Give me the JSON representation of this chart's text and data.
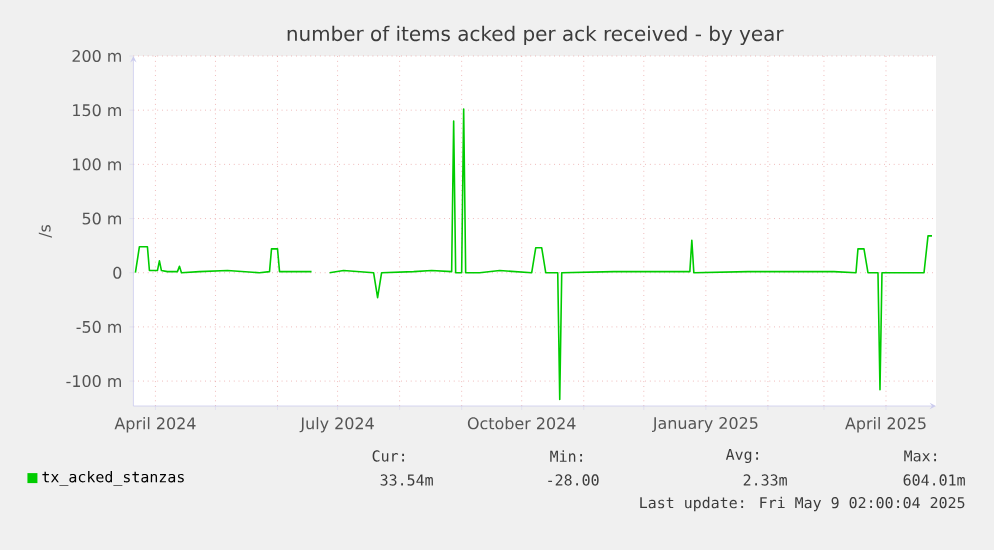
{
  "chart_data": {
    "type": "line",
    "title": "number of items acked per ack received - by year",
    "ylabel": "/s",
    "x": [
      "2024-03-22",
      "2024-03-24",
      "2024-03-28",
      "2024-03-29",
      "2024-04-02",
      "2024-04-03",
      "2024-04-04",
      "2024-04-07",
      "2024-04-12",
      "2024-04-13",
      "2024-04-14",
      "2024-04-23",
      "2024-05-07",
      "2024-05-23",
      "2024-05-28",
      "2024-05-29",
      "2024-06-01",
      "2024-06-02",
      "2024-06-18",
      "2024-06-19",
      "2024-06-27",
      "2024-07-04",
      "2024-07-19",
      "2024-07-21",
      "2024-07-23",
      "2024-08-08",
      "2024-08-17",
      "2024-08-27",
      "2024-08-28",
      "2024-08-29",
      "2024-09-01",
      "2024-09-02",
      "2024-09-03",
      "2024-09-10",
      "2024-09-20",
      "2024-10-06",
      "2024-10-08",
      "2024-10-11",
      "2024-10-13",
      "2024-10-19",
      "2024-10-20",
      "2024-10-21",
      "2024-11-16",
      "2024-12-19",
      "2024-12-24",
      "2024-12-25",
      "2024-12-26",
      "2025-01-22",
      "2025-03-06",
      "2025-03-17",
      "2025-03-18",
      "2025-03-21",
      "2025-03-23",
      "2025-03-28",
      "2025-03-29",
      "2025-03-30",
      "2025-04-20",
      "2025-04-22",
      "2025-04-24"
    ],
    "series": [
      {
        "name": "tx_acked_stanzas",
        "color": "#00cc00",
        "values": [
          0,
          24,
          24,
          2,
          2,
          11,
          2,
          1,
          1,
          6,
          0,
          1,
          2,
          0,
          1,
          22,
          22,
          1,
          1,
          null,
          0,
          2,
          0,
          -23,
          0,
          1,
          2,
          1,
          140,
          0,
          0,
          151,
          0,
          0,
          2,
          0,
          23,
          23,
          0,
          0,
          -117,
          0,
          1,
          1,
          1,
          30,
          0,
          1,
          1,
          0,
          22,
          22,
          0,
          0,
          -108,
          0,
          0,
          34,
          34
        ]
      }
    ],
    "xlim": [
      "2024-03-21",
      "2025-04-26"
    ],
    "xticks": [
      {
        "value": "2024-04-01",
        "label": "April 2024"
      },
      {
        "value": "2024-05-01",
        "label": null
      },
      {
        "value": "2024-06-01",
        "label": null
      },
      {
        "value": "2024-07-01",
        "label": "July 2024"
      },
      {
        "value": "2024-08-01",
        "label": null
      },
      {
        "value": "2024-09-01",
        "label": null
      },
      {
        "value": "2024-10-01",
        "label": "October 2024"
      },
      {
        "value": "2024-11-01",
        "label": null
      },
      {
        "value": "2024-12-01",
        "label": null
      },
      {
        "value": "2025-01-01",
        "label": "January 2025"
      },
      {
        "value": "2025-02-01",
        "label": null
      },
      {
        "value": "2025-03-01",
        "label": null
      },
      {
        "value": "2025-04-01",
        "label": "April 2025"
      }
    ],
    "ylim": [
      -123,
      200
    ],
    "yticks": [
      {
        "value": -100,
        "label": "-100 m"
      },
      {
        "value": -50,
        "label": "-50 m"
      },
      0,
      {
        "value": 50,
        "label": "50 m"
      },
      {
        "value": 100,
        "label": "100 m"
      },
      {
        "value": 150,
        "label": "150 m"
      },
      {
        "value": 200,
        "label": "200 m"
      }
    ],
    "grid": true,
    "legend": "bottom left",
    "annotations": [
      "Cur:",
      "33.54m",
      "Min:",
      "-28.00",
      "Avg:",
      "2.33m",
      "Max:",
      "604.01m",
      "Last update: Fri May 9 02:00:04 2025"
    ]
  }
}
